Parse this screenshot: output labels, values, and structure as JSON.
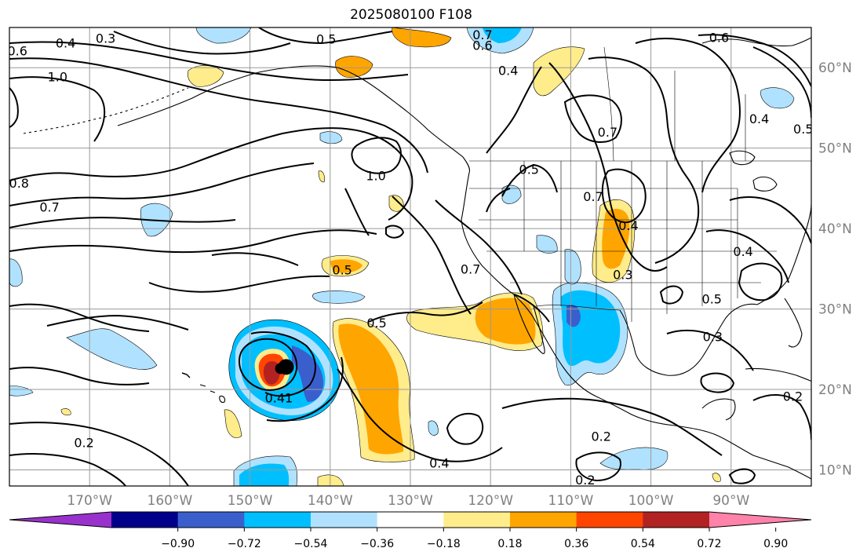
{
  "title": "2025080100 F108",
  "map": {
    "lon_range": [
      -180,
      -80
    ],
    "lat_range": [
      8,
      65
    ],
    "lon_ticks": [
      {
        "label": "170°W",
        "lon": -170
      },
      {
        "label": "160°W",
        "lon": -160
      },
      {
        "label": "150°W",
        "lon": -150
      },
      {
        "label": "140°W",
        "lon": -140
      },
      {
        "label": "130°W",
        "lon": -130
      },
      {
        "label": "120°W",
        "lon": -120
      },
      {
        "label": "110°W",
        "lon": -110
      },
      {
        "label": "100°W",
        "lon": -100
      },
      {
        "label": "90°W",
        "lon": -90
      }
    ],
    "lat_ticks": [
      {
        "label": "60°N",
        "lat": 60
      },
      {
        "label": "50°N",
        "lat": 50
      },
      {
        "label": "40°N",
        "lat": 40
      },
      {
        "label": "30°N",
        "lat": 30
      },
      {
        "label": "20°N",
        "lat": 20
      },
      {
        "label": "10°N",
        "lat": 10
      }
    ],
    "storm_marker": {
      "lon": -145.5,
      "lat": 22.8
    },
    "contour_labels": [
      {
        "text": "0.6",
        "lon": -179,
        "lat": 62
      },
      {
        "text": "0.4",
        "lon": -173,
        "lat": 63
      },
      {
        "text": "0.3",
        "lon": -168,
        "lat": 63.6
      },
      {
        "text": "1.0",
        "lon": -174,
        "lat": 58.8
      },
      {
        "text": "0.5",
        "lon": -140.5,
        "lat": 63.5
      },
      {
        "text": "0.7",
        "lon": -121,
        "lat": 64
      },
      {
        "text": "0.6",
        "lon": -121,
        "lat": 62.7
      },
      {
        "text": "0.4",
        "lon": -117.8,
        "lat": 59.6
      },
      {
        "text": "0.7",
        "lon": -105.4,
        "lat": 51.9
      },
      {
        "text": "0.6",
        "lon": -91.5,
        "lat": 63.7
      },
      {
        "text": "0.4",
        "lon": -86.5,
        "lat": 53.6
      },
      {
        "text": "0.5",
        "lon": -81,
        "lat": 52.3
      },
      {
        "text": "1.0",
        "lon": -134.3,
        "lat": 46.5
      },
      {
        "text": "0.8",
        "lon": -178.8,
        "lat": 45.6
      },
      {
        "text": "0.7",
        "lon": -175,
        "lat": 42.6
      },
      {
        "text": "0.5",
        "lon": -115.2,
        "lat": 47.3
      },
      {
        "text": "0.7",
        "lon": -107.2,
        "lat": 43.9
      },
      {
        "text": "0.7",
        "lon": -122.5,
        "lat": 34.9
      },
      {
        "text": "0.5",
        "lon": -138.5,
        "lat": 34.8
      },
      {
        "text": "0.5",
        "lon": -134.2,
        "lat": 28.2
      },
      {
        "text": "0.3",
        "lon": -103.5,
        "lat": 34.2
      },
      {
        "text": "0.5",
        "lon": -92.4,
        "lat": 31.2
      },
      {
        "text": "0.3",
        "lon": -92.3,
        "lat": 26.5
      },
      {
        "text": "0.41",
        "lon": -146.4,
        "lat": 18.9
      },
      {
        "text": "0.2",
        "lon": -170.7,
        "lat": 13.3
      },
      {
        "text": "0.2",
        "lon": -82.3,
        "lat": 19.1
      },
      {
        "text": "0.2",
        "lon": -106.2,
        "lat": 14.1
      },
      {
        "text": "0.4",
        "lon": -126.4,
        "lat": 10.8
      },
      {
        "text": "0.2",
        "lon": -108.2,
        "lat": 8.7
      },
      {
        "text": "0.4",
        "lon": -102.8,
        "lat": 40.3
      },
      {
        "text": "0.4",
        "lon": -88.5,
        "lat": 37.1
      }
    ]
  },
  "colorbar": {
    "colors": [
      "#9932cc",
      "#00008b",
      "#3a5fcd",
      "#00bfff",
      "#b0e2ff",
      "#ffffff",
      "#ffec8b",
      "#ffa500",
      "#ff4500",
      "#b22222",
      "#ff82ab"
    ],
    "tick_labels": [
      "−0.90",
      "−0.72",
      "−0.54",
      "−0.36",
      "−0.18",
      "0.18",
      "0.36",
      "0.54",
      "0.72",
      "0.90"
    ]
  }
}
